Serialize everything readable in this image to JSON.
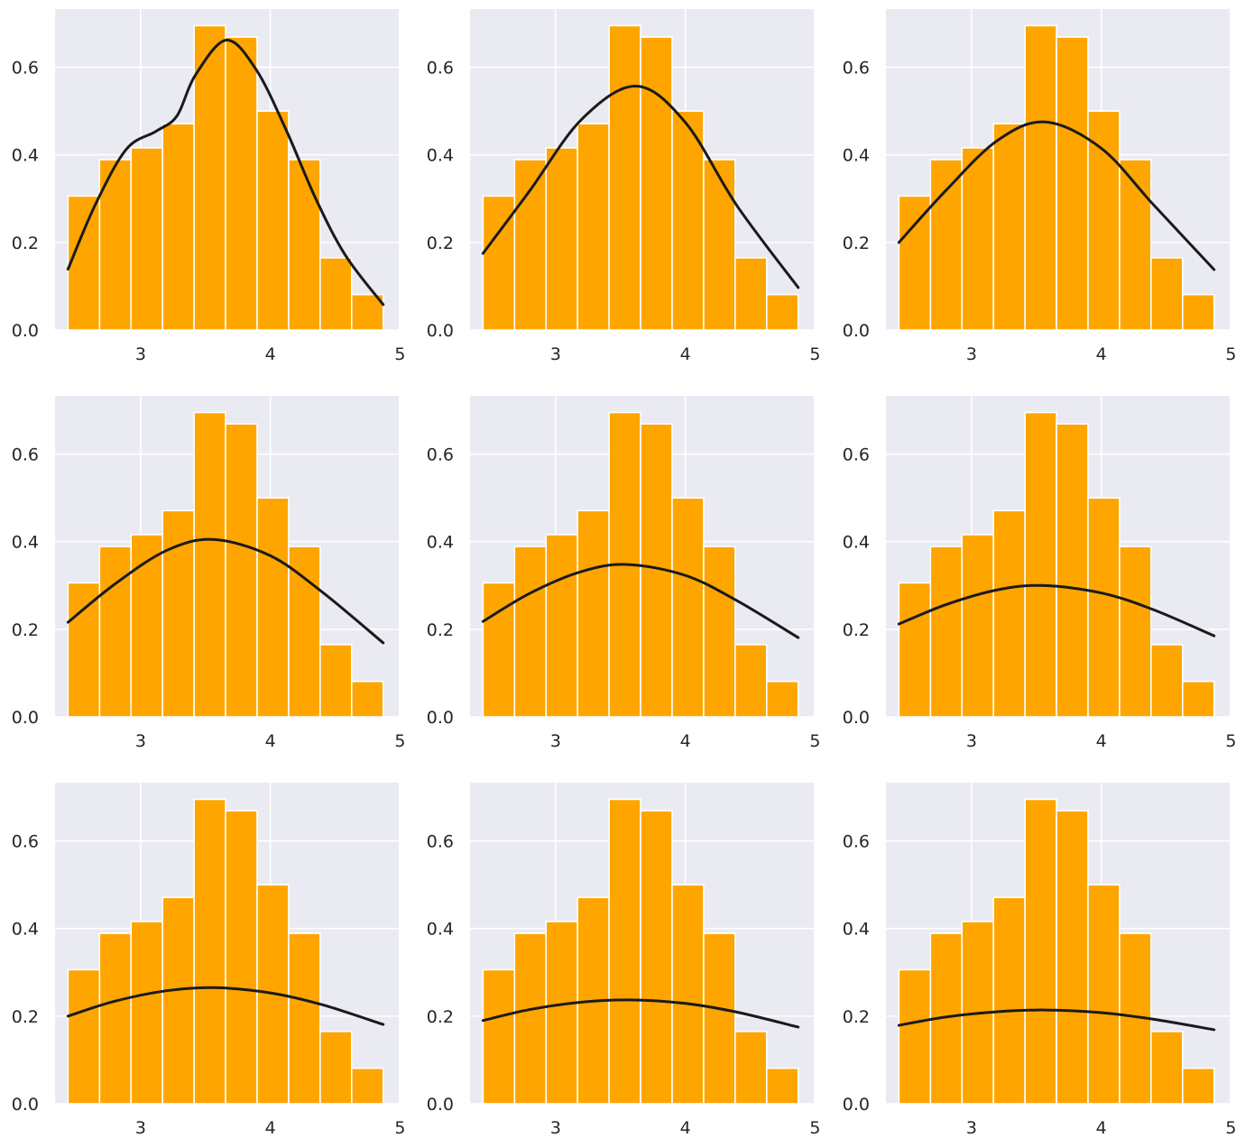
{
  "chart_data": {
    "type": "bar",
    "layout": "3x3 grid of histograms with density curves",
    "background_color": "#eaeaf2",
    "grid": true,
    "bar_color": "#ffa500",
    "bar_edge_color": "#ffffff",
    "curve_color": "#1a1a1a",
    "xlim": [
      2.34,
      4.99
    ],
    "ylim": [
      0,
      0.733
    ],
    "x_ticks": [
      "3",
      "4",
      "5"
    ],
    "x_tick_values": [
      3,
      4,
      5
    ],
    "y_ticks": [
      "0.0",
      "0.2",
      "0.4",
      "0.6"
    ],
    "y_tick_values": [
      0,
      0.2,
      0.4,
      0.6
    ],
    "bin_edges": [
      2.44,
      2.683,
      2.926,
      3.169,
      3.412,
      3.655,
      3.898,
      4.141,
      4.384,
      4.627,
      4.87
    ],
    "bar_values": [
      0.306,
      0.389,
      0.416,
      0.471,
      0.695,
      0.669,
      0.5,
      0.389,
      0.165,
      0.081
    ],
    "panels": [
      {
        "curve": {
          "x": [
            2.44,
            2.65,
            2.89,
            3.12,
            3.28,
            3.42,
            3.66,
            3.89,
            4.12,
            4.35,
            4.58,
            4.87
          ],
          "y": [
            0.139,
            0.286,
            0.413,
            0.454,
            0.489,
            0.581,
            0.662,
            0.595,
            0.458,
            0.3,
            0.17,
            0.058
          ]
        }
      },
      {
        "curve": {
          "x": [
            2.44,
            2.8,
            3.2,
            3.62,
            4.0,
            4.4,
            4.87
          ],
          "y": [
            0.175,
            0.318,
            0.481,
            0.557,
            0.474,
            0.283,
            0.097
          ]
        }
      },
      {
        "curve": {
          "x": [
            2.44,
            2.8,
            3.2,
            3.57,
            4.0,
            4.4,
            4.87
          ],
          "y": [
            0.2,
            0.318,
            0.433,
            0.475,
            0.415,
            0.287,
            0.138
          ]
        }
      },
      {
        "curve": {
          "x": [
            2.44,
            2.8,
            3.2,
            3.56,
            4.0,
            4.4,
            4.87
          ],
          "y": [
            0.216,
            0.303,
            0.38,
            0.405,
            0.368,
            0.285,
            0.169
          ]
        }
      },
      {
        "curve": {
          "x": [
            2.44,
            2.8,
            3.2,
            3.55,
            4.0,
            4.4,
            4.87
          ],
          "y": [
            0.218,
            0.282,
            0.332,
            0.348,
            0.323,
            0.265,
            0.181
          ]
        }
      },
      {
        "curve": {
          "x": [
            2.44,
            2.8,
            3.2,
            3.55,
            4.0,
            4.4,
            4.87
          ],
          "y": [
            0.212,
            0.256,
            0.29,
            0.3,
            0.283,
            0.245,
            0.185
          ]
        }
      },
      {
        "curve": {
          "x": [
            2.44,
            2.8,
            3.2,
            3.57,
            4.0,
            4.4,
            4.87
          ],
          "y": [
            0.2,
            0.234,
            0.258,
            0.265,
            0.253,
            0.226,
            0.181
          ]
        }
      },
      {
        "curve": {
          "x": [
            2.44,
            2.8,
            3.2,
            3.57,
            4.0,
            4.4,
            4.87
          ],
          "y": [
            0.19,
            0.215,
            0.232,
            0.237,
            0.229,
            0.209,
            0.175
          ]
        }
      },
      {
        "curve": {
          "x": [
            2.44,
            2.8,
            3.2,
            3.57,
            4.0,
            4.4,
            4.87
          ],
          "y": [
            0.179,
            0.198,
            0.21,
            0.214,
            0.208,
            0.193,
            0.169
          ]
        }
      }
    ]
  }
}
